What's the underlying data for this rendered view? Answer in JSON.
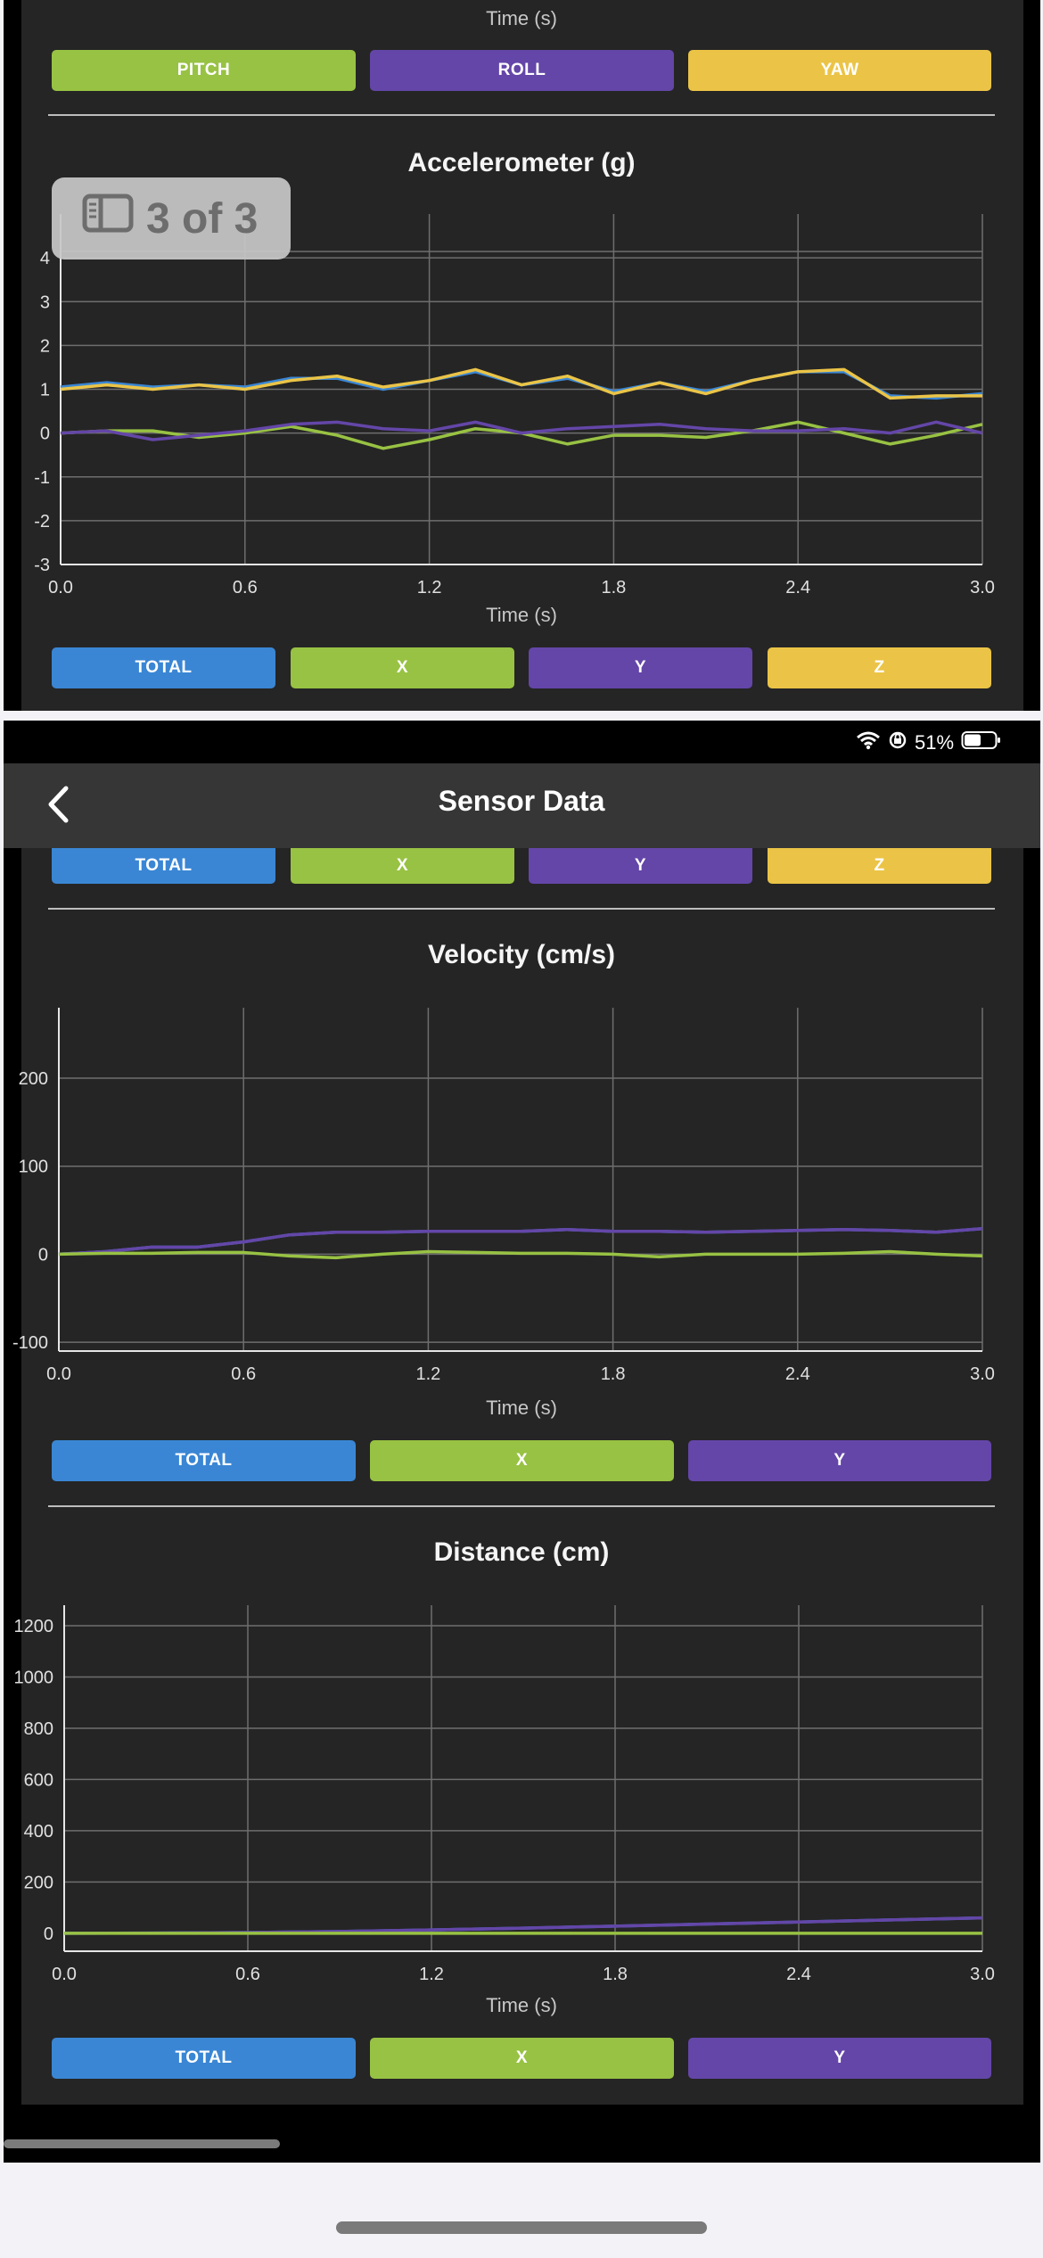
{
  "colors": {
    "total": "#3a86d4",
    "x": "#98c243",
    "y": "#6446a8",
    "z": "#ebc447",
    "pitch": "#98c243",
    "roll": "#6446a8",
    "yaw": "#ebc447"
  },
  "top_section": {
    "prev_axis_label": "Time (s)",
    "gyro_buttons": {
      "pitch": "PITCH",
      "roll": "ROLL",
      "yaw": "YAW"
    },
    "overlay": {
      "icon": "sidebar-icon",
      "text": "3 of 3"
    },
    "accel_buttons": {
      "total": "TOTAL",
      "x": "X",
      "y": "Y",
      "z": "Z"
    }
  },
  "status_bar": {
    "battery_text": "51%",
    "icons": [
      "wifi-icon",
      "orientation-lock-icon",
      "battery-icon"
    ]
  },
  "nav": {
    "title": "Sensor Data",
    "back_icon": "chevron-left-icon"
  },
  "bottom_section": {
    "accel_buttons": {
      "total": "TOTAL",
      "x": "X",
      "y": "Y",
      "z": "Z"
    },
    "velocity_buttons": {
      "total": "TOTAL",
      "x": "X",
      "y": "Y"
    },
    "distance_buttons": {
      "total": "TOTAL",
      "x": "X",
      "y": "Y"
    }
  },
  "chart_data": [
    {
      "id": "accel",
      "type": "line",
      "title": "Accelerometer (g)",
      "xlabel": "Time (s)",
      "ylabel": "",
      "xlim": [
        0,
        3.0
      ],
      "ylim": [
        -3,
        5
      ],
      "xticks": [
        "0.0",
        "0.6",
        "1.2",
        "1.8",
        "2.4",
        "3.0"
      ],
      "yticks": [
        "4",
        "3",
        "2",
        "1",
        "0",
        "-1",
        "-2",
        "-3"
      ],
      "x": [
        0,
        0.15,
        0.3,
        0.45,
        0.6,
        0.75,
        0.9,
        1.05,
        1.2,
        1.35,
        1.5,
        1.65,
        1.8,
        1.95,
        2.1,
        2.25,
        2.4,
        2.55,
        2.7,
        2.85,
        3.0
      ],
      "series": [
        {
          "key": "total",
          "values": [
            1.05,
            1.15,
            1.05,
            1.1,
            1.05,
            1.25,
            1.25,
            1.0,
            1.2,
            1.4,
            1.1,
            1.25,
            0.95,
            1.15,
            0.95,
            1.2,
            1.4,
            1.4,
            0.85,
            0.8,
            0.9
          ]
        },
        {
          "key": "z",
          "values": [
            1.0,
            1.1,
            1.0,
            1.1,
            1.0,
            1.2,
            1.3,
            1.05,
            1.2,
            1.45,
            1.1,
            1.3,
            0.9,
            1.15,
            0.9,
            1.2,
            1.4,
            1.45,
            0.8,
            0.85,
            0.85
          ]
        },
        {
          "key": "x",
          "values": [
            0.0,
            0.05,
            0.05,
            -0.1,
            0.0,
            0.15,
            -0.05,
            -0.35,
            -0.15,
            0.1,
            0.0,
            -0.25,
            -0.05,
            -0.05,
            -0.1,
            0.05,
            0.25,
            0.0,
            -0.25,
            -0.05,
            0.2
          ]
        },
        {
          "key": "y",
          "values": [
            0.0,
            0.05,
            -0.15,
            -0.05,
            0.05,
            0.2,
            0.25,
            0.1,
            0.05,
            0.25,
            0.0,
            0.1,
            0.15,
            0.2,
            0.1,
            0.05,
            0.05,
            0.1,
            0.0,
            0.25,
            0.0
          ]
        }
      ]
    },
    {
      "id": "velocity",
      "type": "line",
      "title": "Velocity (cm/s)",
      "xlabel": "Time (s)",
      "ylabel": "",
      "xlim": [
        0,
        3.0
      ],
      "ylim": [
        -110,
        280
      ],
      "xticks": [
        "0.0",
        "0.6",
        "1.2",
        "1.8",
        "2.4",
        "3.0"
      ],
      "yticks": [
        "200",
        "100",
        "0",
        "-100"
      ],
      "x": [
        0,
        0.15,
        0.3,
        0.45,
        0.6,
        0.75,
        0.9,
        1.05,
        1.2,
        1.35,
        1.5,
        1.65,
        1.8,
        1.95,
        2.1,
        2.25,
        2.4,
        2.55,
        2.7,
        2.85,
        3.0
      ],
      "series": [
        {
          "key": "total",
          "values": [
            0,
            3,
            8,
            8,
            14,
            22,
            25,
            25,
            26,
            26,
            26,
            28,
            26,
            26,
            25,
            26,
            27,
            28,
            27,
            25,
            29
          ]
        },
        {
          "key": "y",
          "values": [
            0,
            3,
            8,
            8,
            14,
            22,
            25,
            25,
            26,
            26,
            26,
            28,
            26,
            26,
            25,
            26,
            27,
            28,
            27,
            25,
            29
          ]
        },
        {
          "key": "x",
          "values": [
            0,
            1,
            1,
            2,
            2,
            -2,
            -4,
            0,
            3,
            2,
            1,
            1,
            0,
            -3,
            0,
            0,
            0,
            1,
            3,
            0,
            -2
          ]
        }
      ]
    },
    {
      "id": "distance",
      "type": "line",
      "title": "Distance (cm)",
      "xlabel": "Time (s)",
      "ylabel": "",
      "xlim": [
        0,
        3.0
      ],
      "ylim": [
        -70,
        1280
      ],
      "xticks": [
        "0.0",
        "0.6",
        "1.2",
        "1.8",
        "2.4",
        "3.0"
      ],
      "yticks": [
        "1200",
        "1000",
        "800",
        "600",
        "400",
        "200",
        "0"
      ],
      "x": [
        0,
        0.3,
        0.6,
        0.9,
        1.2,
        1.5,
        1.8,
        2.1,
        2.4,
        2.7,
        3.0
      ],
      "series": [
        {
          "key": "total",
          "values": [
            0,
            1,
            3,
            7,
            13,
            20,
            28,
            36,
            44,
            52,
            60
          ]
        },
        {
          "key": "y",
          "values": [
            0,
            1,
            3,
            7,
            13,
            20,
            28,
            36,
            44,
            52,
            60
          ]
        },
        {
          "key": "x",
          "values": [
            0,
            0,
            0,
            0,
            0,
            0,
            0,
            0,
            0,
            0,
            0
          ]
        }
      ]
    }
  ]
}
